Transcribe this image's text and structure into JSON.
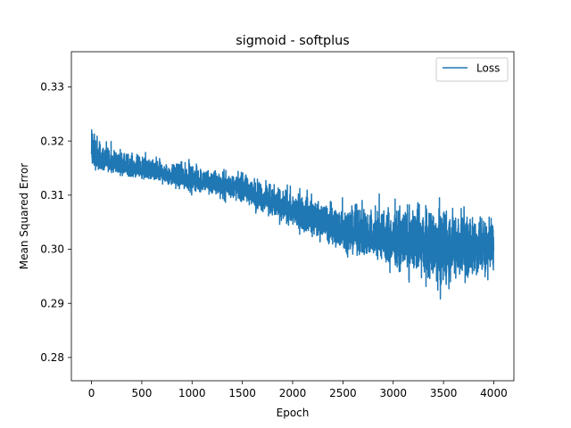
{
  "chart_data": {
    "type": "line",
    "title": "sigmoid - softplus",
    "xlabel": "Epoch",
    "ylabel": "Mean Squared Error",
    "xlim": [
      -200,
      4200
    ],
    "ylim": [
      0.2757,
      0.3365
    ],
    "x_ticks": [
      0,
      500,
      1000,
      1500,
      2000,
      2500,
      3000,
      3500,
      4000
    ],
    "y_ticks": [
      0.28,
      0.29,
      0.3,
      0.31,
      0.32,
      0.33
    ],
    "x_tick_labels": [
      "0",
      "500",
      "1000",
      "1500",
      "2000",
      "2500",
      "3000",
      "3500",
      "4000"
    ],
    "y_tick_labels": [
      "0.28",
      "0.29",
      "0.30",
      "0.31",
      "0.32",
      "0.33"
    ],
    "grid": false,
    "legend": {
      "position": "upper right",
      "entries": [
        "Loss"
      ]
    },
    "series": [
      {
        "name": "Loss",
        "color": "#1f77b4",
        "num_points": 4000,
        "trend": {
          "epoch": [
            0,
            50,
            100,
            500,
            1000,
            1500,
            2000,
            2500,
            3000,
            3500,
            4000
          ],
          "mean_mse": [
            0.3175,
            0.3165,
            0.3162,
            0.3145,
            0.3128,
            0.311,
            0.307,
            0.3035,
            0.301,
            0.3005,
            0.3005
          ]
        },
        "envelope": {
          "epoch": [
            0,
            100,
            500,
            1000,
            1500,
            2000,
            2500,
            3000,
            3500,
            4000
          ],
          "max_mse": [
            0.3265,
            0.3205,
            0.318,
            0.3165,
            0.315,
            0.3115,
            0.3095,
            0.3105,
            0.311,
            0.307
          ],
          "min_mse": [
            0.314,
            0.314,
            0.3125,
            0.31,
            0.308,
            0.303,
            0.2985,
            0.2955,
            0.2905,
            0.294
          ]
        }
      }
    ]
  }
}
